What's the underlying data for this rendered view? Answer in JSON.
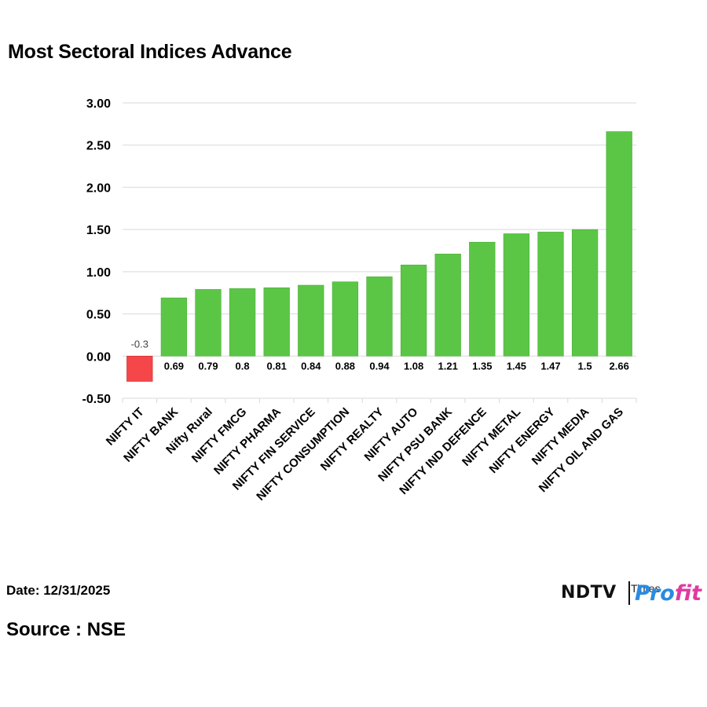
{
  "title": "Most Sectoral Indices Advance",
  "footer": {
    "date": "Date: 12/31/2025",
    "source": "Source : NSE"
  },
  "logo": {
    "ndtv": "NDTV",
    "times": "Times",
    "profit_a": "Pro",
    "profit_b": "fit"
  },
  "colors": {
    "positive": "#5bc646",
    "negative": "#f5464a",
    "grid": "#d9d9d9"
  },
  "chart_data": {
    "type": "bar",
    "title": "Most Sectoral Indices Advance",
    "xlabel": "",
    "ylabel": "",
    "ylim": [
      -0.5,
      3.0
    ],
    "yticks": [
      "3.00",
      "2.50",
      "2.00",
      "1.50",
      "1.00",
      "0.50",
      "0.00",
      "-0.50"
    ],
    "ytick_values": [
      3.0,
      2.5,
      2.0,
      1.5,
      1.0,
      0.5,
      0.0,
      -0.5
    ],
    "grid": true,
    "categories": [
      "NIFTY IT",
      "NIFTY BANK",
      "Nifty Rural",
      "NIFTY FMCG",
      "NIFTY PHARMA",
      "NIFTY FIN SERVICE",
      "NIFTY CONSUMPTION",
      "NIFTY REALTY",
      "NIFTY AUTO",
      "NIFTY PSU BANK",
      "NIFTY IND DEFENCE",
      "NIFTY METAL",
      "NIFTY ENERGY",
      "NIFTY MEDIA",
      "NIFTY OIL AND GAS"
    ],
    "values": [
      -0.3,
      0.69,
      0.79,
      0.8,
      0.81,
      0.84,
      0.88,
      0.94,
      1.08,
      1.21,
      1.35,
      1.45,
      1.47,
      1.5,
      2.66
    ],
    "value_labels": [
      "-0.3",
      "0.69",
      "0.79",
      "0.8",
      "0.81",
      "0.84",
      "0.88",
      "0.94",
      "1.08",
      "1.21",
      "1.35",
      "1.45",
      "1.47",
      "1.5",
      "2.66"
    ]
  }
}
